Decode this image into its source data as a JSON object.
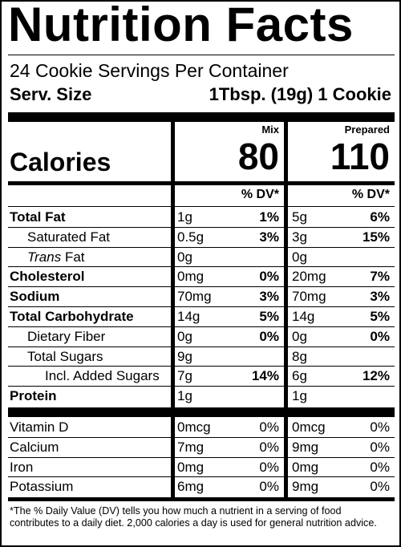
{
  "title": "Nutrition Facts",
  "servings": "24 Cookie Servings Per Container",
  "serving_size": {
    "label": "Serv. Size",
    "value": "1Tbsp. (19g) 1 Cookie"
  },
  "columns": [
    "Mix",
    "Prepared"
  ],
  "calories": {
    "label": "Calories",
    "values": [
      "80",
      "110"
    ]
  },
  "dv_header": [
    "% DV*",
    "% DV*"
  ],
  "nutrients": [
    {
      "name": "Total Fat",
      "bold": true,
      "indent": 0,
      "mix": [
        "1g",
        "1%"
      ],
      "prepared": [
        "5g",
        "6%"
      ]
    },
    {
      "name": "Saturated Fat",
      "bold": false,
      "indent": 1,
      "mix": [
        "0.5g",
        "3%"
      ],
      "prepared": [
        "3g",
        "15%"
      ]
    },
    {
      "prefix": "Trans",
      "name": "Fat",
      "bold": false,
      "indent": 1,
      "mix": [
        "0g"
      ],
      "prepared": [
        "0g"
      ]
    },
    {
      "name": "Cholesterol",
      "bold": true,
      "indent": 0,
      "mix": [
        "0mg",
        "0%"
      ],
      "prepared": [
        "20mg",
        "7%"
      ]
    },
    {
      "name": "Sodium",
      "bold": true,
      "indent": 0,
      "mix": [
        "70mg",
        "3%"
      ],
      "prepared": [
        "70mg",
        "3%"
      ]
    },
    {
      "name": "Total Carbohydrate",
      "bold": true,
      "indent": 0,
      "mix": [
        "14g",
        "5%"
      ],
      "prepared": [
        "14g",
        "5%"
      ]
    },
    {
      "name": "Dietary Fiber",
      "bold": false,
      "indent": 1,
      "mix": [
        "0g",
        "0%"
      ],
      "prepared": [
        "0g",
        "0%"
      ]
    },
    {
      "name": "Total Sugars",
      "bold": false,
      "indent": 1,
      "mix": [
        "9g"
      ],
      "prepared": [
        "8g"
      ]
    },
    {
      "name": "Incl. Added Sugars",
      "bold": false,
      "indent": 2,
      "mix": [
        "7g",
        "14%"
      ],
      "prepared": [
        "6g",
        "12%"
      ]
    },
    {
      "name": "Protein",
      "bold": true,
      "indent": 0,
      "mix": [
        "1g"
      ],
      "prepared": [
        "1g"
      ]
    }
  ],
  "vitamins": [
    {
      "name": "Vitamin D",
      "mix": [
        "0mcg",
        "0%"
      ],
      "prepared": [
        "0mcg",
        "0%"
      ]
    },
    {
      "name": "Calcium",
      "mix": [
        "7mg",
        "0%"
      ],
      "prepared": [
        "9mg",
        "0%"
      ]
    },
    {
      "name": "Iron",
      "mix": [
        "0mg",
        "0%"
      ],
      "prepared": [
        "0mg",
        "0%"
      ]
    },
    {
      "name": "Potassium",
      "mix": [
        "6mg",
        "0%"
      ],
      "prepared": [
        "9mg",
        "0%"
      ]
    }
  ],
  "footnote": "*The % Daily Value (DV) tells you how much a nutrient in a serving of food contributes to a daily diet. 2,000 calories a day is used for general nutrition advice."
}
